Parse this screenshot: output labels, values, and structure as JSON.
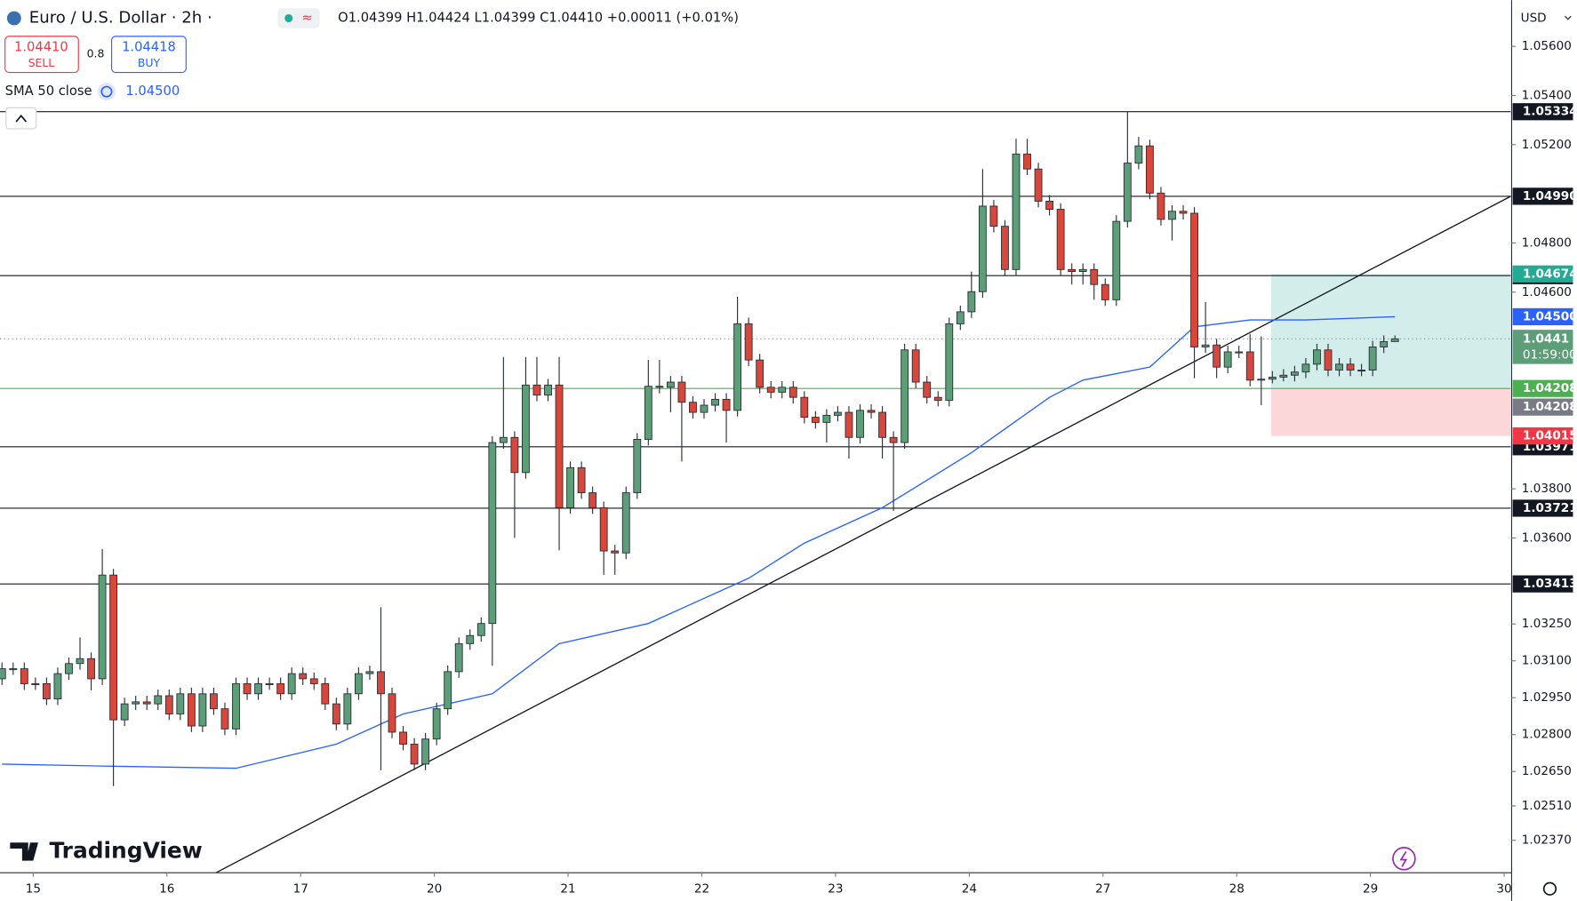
{
  "header": {
    "symbol": "Euro / U.S. Dollar · 2h ·",
    "ohlc": "O1.04399 H1.04424 L1.04399 C1.04410 +0.00011 (+0.01%)",
    "sell_price": "1.04410",
    "sell_label": "SELL",
    "spread": "0.8",
    "buy_price": "1.04418",
    "buy_label": "BUY",
    "indicator": "SMA 50 close",
    "currency": "USD",
    "brand": "TradingView"
  },
  "chart_data": {
    "type": "candlestick",
    "up_color": "#5c9e77",
    "down_color": "#d9473a",
    "xlim": [
      -0.18,
      135.38
    ],
    "ylim": [
      1.02238,
      1.05788
    ],
    "xticks": [
      {
        "value": 2.8,
        "label": "15"
      },
      {
        "value": 14.8,
        "label": "16"
      },
      {
        "value": 26.8,
        "label": "17"
      },
      {
        "value": 38.8,
        "label": "20"
      },
      {
        "value": 50.8,
        "label": "21"
      },
      {
        "value": 62.8,
        "label": "22"
      },
      {
        "value": 74.8,
        "label": "23"
      },
      {
        "value": 86.8,
        "label": "24"
      },
      {
        "value": 98.8,
        "label": "27"
      },
      {
        "value": 110.8,
        "label": "28"
      },
      {
        "value": 122.8,
        "label": "29"
      },
      {
        "value": 134.8,
        "label": "30"
      }
    ],
    "yticks": [
      {
        "value": 1.056,
        "label": "1.05600"
      },
      {
        "value": 1.054,
        "label": "1.05400"
      },
      {
        "value": 1.052,
        "label": "1.05200"
      },
      {
        "value": 1.048,
        "label": "1.04800"
      },
      {
        "value": 1.046,
        "label": "1.04600"
      },
      {
        "value": 1.038,
        "label": "1.03800"
      },
      {
        "value": 1.036,
        "label": "1.03600"
      },
      {
        "value": 1.0325,
        "label": "1.03250"
      },
      {
        "value": 1.031,
        "label": "1.03100"
      },
      {
        "value": 1.0295,
        "label": "1.02950"
      },
      {
        "value": 1.028,
        "label": "1.02800"
      },
      {
        "value": 1.0265,
        "label": "1.02650"
      },
      {
        "value": 1.0251,
        "label": "1.02510"
      },
      {
        "value": 1.0237,
        "label": "1.02370"
      }
    ],
    "open": [
      1.03027,
      1.03068,
      1.03068,
      1.03007,
      1.03007,
      1.02945,
      1.03048,
      1.03089,
      1.03109,
      1.03027,
      1.03449,
      1.0286,
      1.02925,
      1.02933,
      1.02925,
      1.02958,
      1.02884,
      1.02966,
      1.02835,
      1.02966,
      1.02905,
      1.02823,
      1.03007,
      1.02966,
      1.03007,
      1.03007,
      1.02966,
      1.03048,
      1.03027,
      1.03007,
      1.02925,
      1.02843,
      1.02966,
      1.03048,
      1.03056,
      1.02966,
      1.0281,
      1.02761,
      1.0268,
      1.02782,
      1.02905,
      1.03056,
      1.0317,
      1.03203,
      1.03252,
      1.03988,
      1.04009,
      1.03866,
      1.04222,
      1.04181,
      1.04222,
      1.03723,
      1.03886,
      1.03784,
      1.03723,
      1.03547,
      1.03539,
      1.03784,
      1.04001,
      1.04217,
      1.04213,
      1.04234,
      1.04152,
      1.04111,
      1.0414,
      1.04164,
      1.04119,
      1.04471,
      1.04324,
      1.04213,
      1.04193,
      1.04213,
      1.04172,
      1.04091,
      1.0407,
      1.04099,
      1.04111,
      1.04009,
      1.04119,
      1.04111,
      1.04009,
      1.03988,
      1.04365,
      1.04234,
      1.04172,
      1.0416,
      1.04471,
      1.0452,
      1.04602,
      1.0495,
      1.04868,
      1.04692,
      1.05162,
      1.05101,
      1.0497,
      1.04937,
      1.04692,
      1.04684,
      1.04692,
      1.04631,
      1.04569,
      1.04888,
      1.05125,
      1.05195,
      1.05003,
      1.04896,
      1.04929,
      1.04921,
      1.04377,
      1.04385,
      1.04295,
      1.04357,
      1.04357,
      1.04242,
      1.04246,
      1.04254,
      1.04262,
      1.04275,
      1.04307,
      1.04365,
      1.04283,
      1.04307,
      1.04283,
      1.04283,
      1.04377,
      1.04399
    ],
    "high": [
      1.03093,
      1.03093,
      1.03093,
      1.03032,
      1.03032,
      1.03073,
      1.03114,
      1.03195,
      1.03134,
      1.03555,
      1.03474,
      1.0295,
      1.02958,
      1.02958,
      1.02983,
      1.02983,
      1.02991,
      1.02991,
      1.02991,
      1.02991,
      1.0293,
      1.03032,
      1.03032,
      1.03032,
      1.03032,
      1.03032,
      1.03073,
      1.03073,
      1.03052,
      1.03032,
      1.0295,
      1.02991,
      1.03073,
      1.03081,
      1.03318,
      1.02991,
      1.02835,
      1.02786,
      1.02807,
      1.0293,
      1.03081,
      1.03195,
      1.03228,
      1.03277,
      1.04013,
      1.04336,
      1.04034,
      1.04336,
      1.04336,
      1.04247,
      1.04336,
      1.03911,
      1.03911,
      1.03809,
      1.03748,
      1.03572,
      1.03809,
      1.04026,
      1.04324,
      1.04324,
      1.04259,
      1.04259,
      1.04177,
      1.04165,
      1.04189,
      1.04189,
      1.04581,
      1.04496,
      1.04349,
      1.04238,
      1.04238,
      1.04238,
      1.04197,
      1.04116,
      1.04124,
      1.04136,
      1.04136,
      1.04144,
      1.04144,
      1.04136,
      1.04034,
      1.0439,
      1.0439,
      1.04259,
      1.04197,
      1.04496,
      1.04545,
      1.04684,
      1.05101,
      1.04975,
      1.04893,
      1.05224,
      1.05224,
      1.05126,
      1.04995,
      1.04962,
      1.04717,
      1.04717,
      1.04717,
      1.04656,
      1.04913,
      1.05334,
      1.05232,
      1.0522,
      1.05028,
      1.04954,
      1.04954,
      1.04946,
      1.0456,
      1.0441,
      1.04382,
      1.04382,
      1.0443,
      1.0442,
      1.04279,
      1.04287,
      1.043,
      1.04332,
      1.0439,
      1.0439,
      1.04332,
      1.04332,
      1.04308,
      1.04402,
      1.04424,
      1.04424
    ],
    "low": [
      1.03002,
      1.03043,
      1.02982,
      1.02982,
      1.0292,
      1.0292,
      1.03023,
      1.03064,
      1.0298,
      1.03002,
      1.0259,
      1.02835,
      1.029,
      1.029,
      1.029,
      1.02859,
      1.02859,
      1.0281,
      1.0281,
      1.0288,
      1.02798,
      1.02798,
      1.02941,
      1.02941,
      1.02982,
      1.02941,
      1.02941,
      1.03002,
      1.02982,
      1.029,
      1.02818,
      1.02818,
      1.02941,
      1.03023,
      1.02655,
      1.02785,
      1.02736,
      1.02655,
      1.02655,
      1.02757,
      1.0288,
      1.03031,
      1.03145,
      1.03178,
      1.0308,
      1.03963,
      1.036,
      1.03841,
      1.04156,
      1.04156,
      1.0355,
      1.03698,
      1.03759,
      1.03698,
      1.0345,
      1.0345,
      1.03514,
      1.03759,
      1.03976,
      1.04188,
      1.04111,
      1.03911,
      1.04086,
      1.04086,
      1.04115,
      1.03988,
      1.04094,
      1.04299,
      1.04188,
      1.04168,
      1.04168,
      1.04147,
      1.04066,
      1.04045,
      1.03988,
      1.04074,
      1.03923,
      1.03984,
      1.04086,
      1.03923,
      1.0371,
      1.03963,
      1.04209,
      1.04147,
      1.04135,
      1.04135,
      1.04446,
      1.04495,
      1.04577,
      1.04843,
      1.04667,
      1.04667,
      1.05076,
      1.04945,
      1.04912,
      1.04667,
      1.04631,
      1.04631,
      1.04569,
      1.04544,
      1.04544,
      1.04863,
      1.051,
      1.04978,
      1.04871,
      1.0481,
      1.04896,
      1.0425,
      1.04352,
      1.0425,
      1.0427,
      1.04332,
      1.04217,
      1.0414,
      1.04229,
      1.04237,
      1.04237,
      1.0425,
      1.04282,
      1.04258,
      1.04258,
      1.04258,
      1.04258,
      1.04258,
      1.04352,
      1.04399
    ],
    "close": [
      1.03068,
      1.03068,
      1.03007,
      1.03007,
      1.02945,
      1.03048,
      1.03089,
      1.03109,
      1.03027,
      1.03449,
      1.0286,
      1.02925,
      1.02933,
      1.02925,
      1.02958,
      1.02884,
      1.02966,
      1.02835,
      1.02966,
      1.02905,
      1.02823,
      1.03007,
      1.02966,
      1.03007,
      1.03007,
      1.02966,
      1.03048,
      1.03027,
      1.03007,
      1.02925,
      1.02843,
      1.02966,
      1.03048,
      1.03056,
      1.02966,
      1.0281,
      1.02761,
      1.0268,
      1.02782,
      1.02905,
      1.03056,
      1.0317,
      1.03203,
      1.03252,
      1.03988,
      1.04009,
      1.03866,
      1.04222,
      1.04181,
      1.04222,
      1.03723,
      1.03886,
      1.03784,
      1.03723,
      1.03547,
      1.03539,
      1.03784,
      1.04001,
      1.04217,
      1.04213,
      1.04234,
      1.04152,
      1.04111,
      1.0414,
      1.04164,
      1.04119,
      1.04471,
      1.04324,
      1.04213,
      1.04193,
      1.04213,
      1.04172,
      1.04091,
      1.0407,
      1.04099,
      1.04111,
      1.04009,
      1.04119,
      1.04111,
      1.04009,
      1.03988,
      1.04365,
      1.04234,
      1.04172,
      1.0416,
      1.04471,
      1.0452,
      1.04602,
      1.0495,
      1.04868,
      1.04692,
      1.05162,
      1.05101,
      1.0497,
      1.04937,
      1.04692,
      1.04684,
      1.04692,
      1.04631,
      1.04569,
      1.04888,
      1.05125,
      1.05195,
      1.05003,
      1.04896,
      1.04929,
      1.04921,
      1.04377,
      1.04385,
      1.04295,
      1.04357,
      1.04357,
      1.04242,
      1.04246,
      1.04254,
      1.04262,
      1.04275,
      1.04307,
      1.04365,
      1.04283,
      1.04307,
      1.04283,
      1.04283,
      1.04377,
      1.04399,
      1.0441
    ],
    "sma": {
      "color": "#2962ff",
      "x": [
        0,
        9,
        21,
        30,
        36,
        44,
        50,
        58,
        67,
        72,
        79,
        87,
        94,
        97,
        103,
        107,
        112,
        117,
        125
      ],
      "values": [
        1.0268,
        1.02672,
        1.02663,
        1.02761,
        1.02884,
        1.02966,
        1.0317,
        1.03252,
        1.03436,
        1.03579,
        1.03723,
        1.03947,
        1.04172,
        1.04242,
        1.04295,
        1.04459,
        1.04487,
        1.04487,
        1.045
      ],
      "last": {
        "value": 1.045,
        "label": "1.04500"
      }
    },
    "hlines": [
      1.05334,
      {
        "value": 1.0499,
        "label": "1.04990"
      },
      1.04667,
      1.03971,
      1.03721,
      1.03413
    ],
    "trendline": {
      "x": [
        19.2,
        135.4
      ],
      "y": [
        1.02238,
        1.0499
      ]
    },
    "position": {
      "start": 113.9,
      "target": 1.04674,
      "entry": 1.04208,
      "stop": 1.04015
    },
    "last_price": 1.0441,
    "countdown": "01:59:00"
  }
}
